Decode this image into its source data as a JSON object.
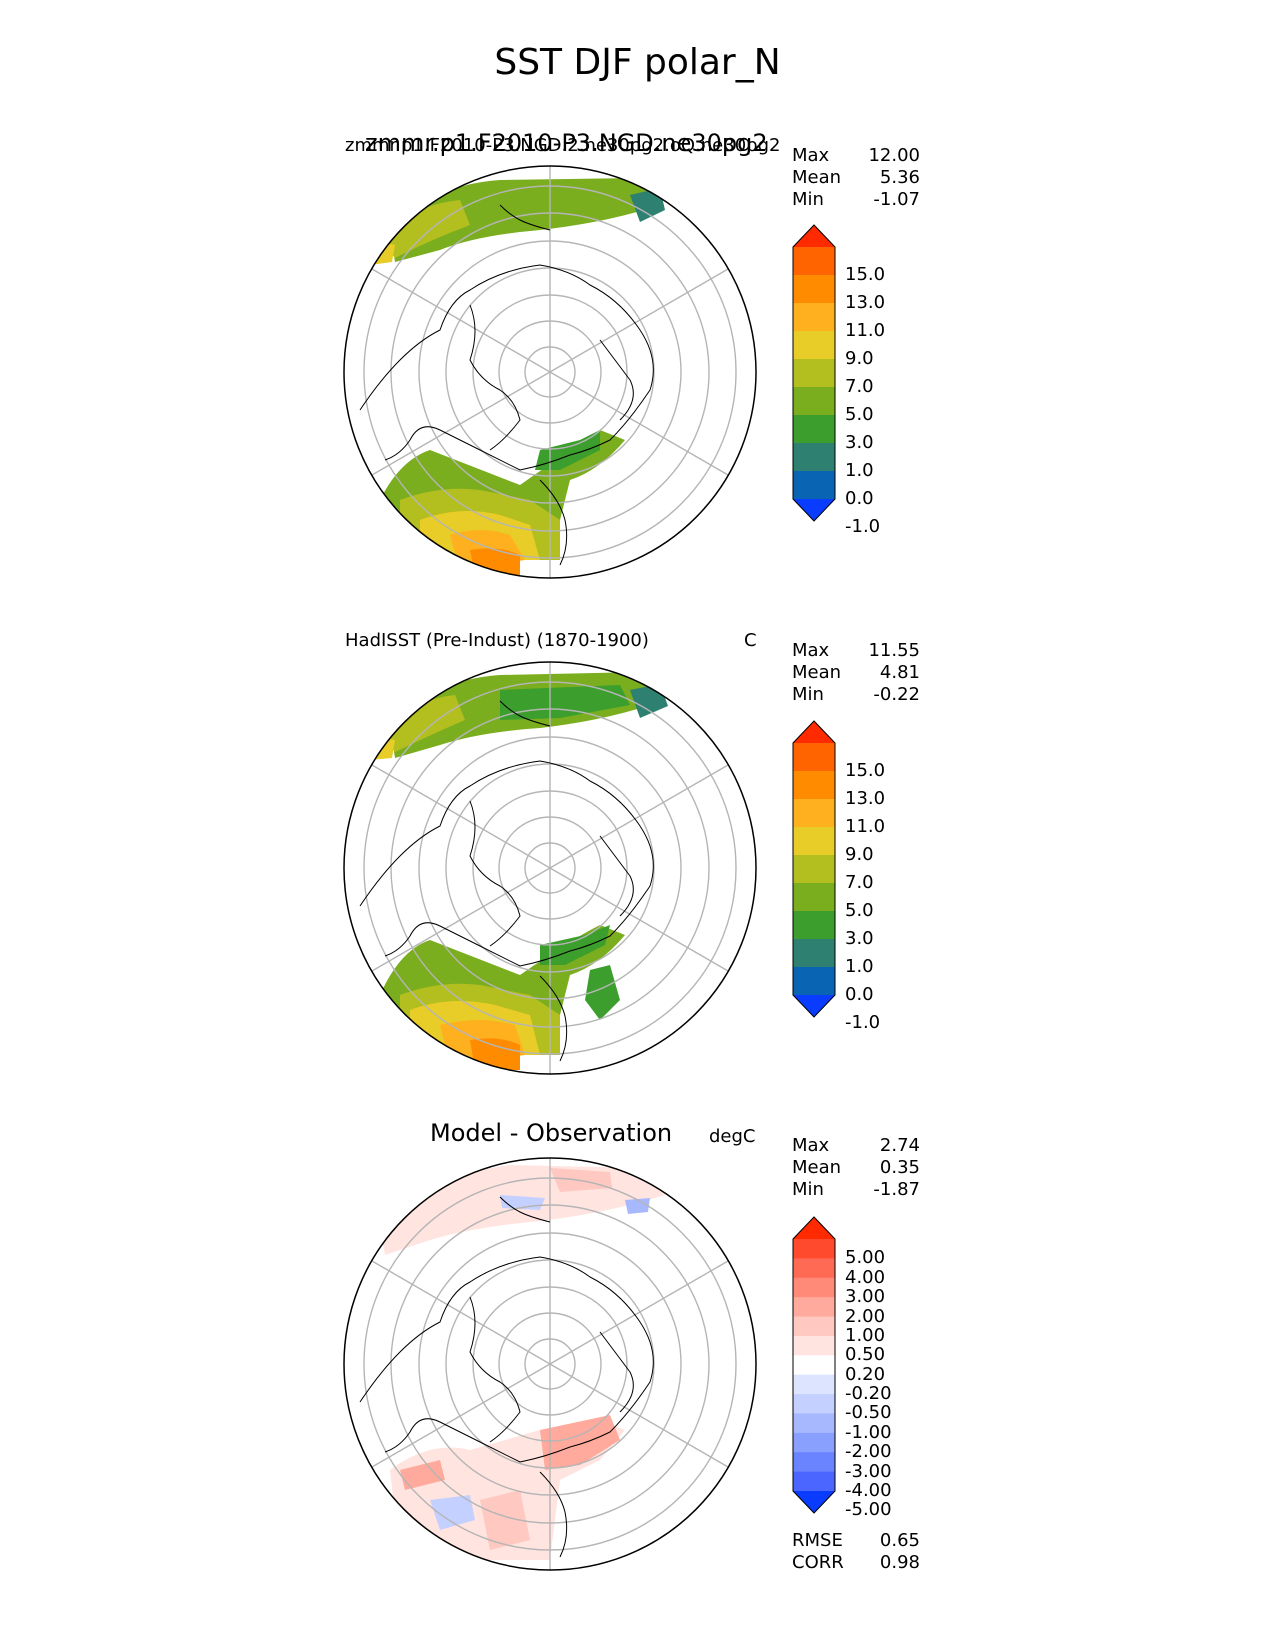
{
  "title": "SST DJF polar_N",
  "panels": [
    {
      "name": "model",
      "left_title": "zmmr.p1.F2010-P3.NGD.2.ne30pg2.oQ.ne30pg2",
      "left_title_overlay": "zmmr.p1.F2010-P3.NGD.ne30pg2",
      "units": "",
      "stats": [
        {
          "label": "Max",
          "value": "12.00"
        },
        {
          "label": "Mean",
          "value": "5.36"
        },
        {
          "label": "Min",
          "value": "-1.07"
        }
      ],
      "colorbar_labels": [
        "15.0",
        "13.0",
        "11.0",
        "9.0",
        "7.0",
        "5.0",
        "3.0",
        "1.0",
        "0.0",
        "-1.0"
      ],
      "colorbar_colors": [
        "#ff2a00",
        "#ff6400",
        "#ff8c00",
        "#ffb01e",
        "#e8cd28",
        "#b3bf1e",
        "#7aae1e",
        "#3c9e2c",
        "#2e8070",
        "#0a64b4",
        "#0a3cff"
      ]
    },
    {
      "name": "observation",
      "left_title": "HadISST (Pre-Indust) (1870-1900)",
      "units": "C",
      "stats": [
        {
          "label": "Max",
          "value": "11.55"
        },
        {
          "label": "Mean",
          "value": "4.81"
        },
        {
          "label": "Min",
          "value": "-0.22"
        }
      ],
      "colorbar_labels": [
        "15.0",
        "13.0",
        "11.0",
        "9.0",
        "7.0",
        "5.0",
        "3.0",
        "1.0",
        "0.0",
        "-1.0"
      ],
      "colorbar_colors": [
        "#ff2a00",
        "#ff6400",
        "#ff8c00",
        "#ffb01e",
        "#e8cd28",
        "#b3bf1e",
        "#7aae1e",
        "#3c9e2c",
        "#2e8070",
        "#0a64b4",
        "#0a3cff"
      ]
    },
    {
      "name": "difference",
      "center_title": "Model - Observation",
      "units": "degC",
      "stats": [
        {
          "label": "Max",
          "value": "2.74"
        },
        {
          "label": "Mean",
          "value": "0.35"
        },
        {
          "label": "Min",
          "value": "-1.87"
        }
      ],
      "extra_stats": [
        {
          "label": "RMSE",
          "value": "0.65"
        },
        {
          "label": "CORR",
          "value": "0.98"
        }
      ],
      "colorbar_labels": [
        "5.00",
        "4.00",
        "3.00",
        "2.00",
        "1.00",
        "0.50",
        "0.20",
        "-0.20",
        "-0.50",
        "-1.00",
        "-2.00",
        "-3.00",
        "-4.00",
        "-5.00"
      ],
      "colorbar_colors": [
        "#ff2a00",
        "#ff4a2e",
        "#ff6a55",
        "#ff8a78",
        "#ffaa9c",
        "#ffc8c0",
        "#ffe4e0",
        "#ffffff",
        "#dde4ff",
        "#c4d0ff",
        "#a8b8ff",
        "#8aa0ff",
        "#6a84ff",
        "#4a66ff",
        "#0a3cff"
      ]
    }
  ],
  "chart_data": [
    {
      "type": "heatmap",
      "projection": "north polar stereographic",
      "title": "zmmr.p1.F2010-P3.NGD.2.ne30pg2",
      "variable": "SST",
      "season": "DJF",
      "region": "polar_N",
      "stats": {
        "max": 12.0,
        "mean": 5.36,
        "min": -1.07
      },
      "levels": [
        -1.0,
        0.0,
        1.0,
        3.0,
        5.0,
        7.0,
        9.0,
        11.0,
        13.0,
        15.0
      ],
      "grid": true
    },
    {
      "type": "heatmap",
      "projection": "north polar stereographic",
      "title": "HadISST (Pre-Indust) (1870-1900)",
      "units": "C",
      "stats": {
        "max": 11.55,
        "mean": 4.81,
        "min": -0.22
      },
      "levels": [
        -1.0,
        0.0,
        1.0,
        3.0,
        5.0,
        7.0,
        9.0,
        11.0,
        13.0,
        15.0
      ],
      "grid": true
    },
    {
      "type": "heatmap",
      "projection": "north polar stereographic",
      "title": "Model - Observation",
      "units": "degC",
      "stats": {
        "max": 2.74,
        "mean": 0.35,
        "min": -1.87,
        "rmse": 0.65,
        "corr": 0.98
      },
      "levels": [
        -5.0,
        -4.0,
        -3.0,
        -2.0,
        -1.0,
        -0.5,
        -0.2,
        0.2,
        0.5,
        1.0,
        2.0,
        3.0,
        4.0,
        5.0
      ],
      "grid": true
    }
  ]
}
